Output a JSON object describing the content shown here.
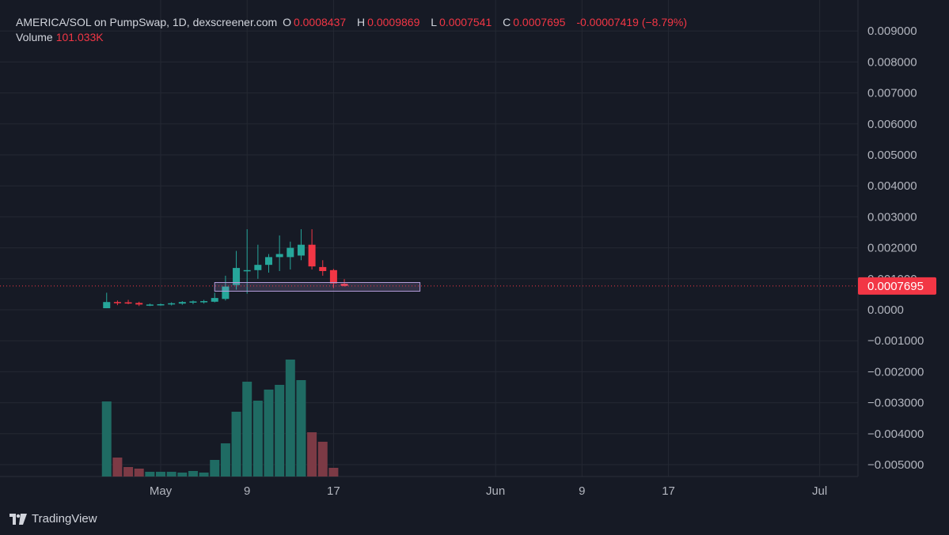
{
  "header": {
    "symbol": "AMERICA/SOL on PumpSwap, 1D, dexscreener.com",
    "o_label": "O",
    "o_value": "0.0008437",
    "h_label": "H",
    "h_value": "0.0009869",
    "l_label": "L",
    "l_value": "0.0007541",
    "c_label": "C",
    "c_value": "0.0007695",
    "change": "-0.00007419 (−8.79%)"
  },
  "volume": {
    "label": "Volume",
    "value": "101.033K"
  },
  "brand": {
    "name": "TradingView"
  },
  "colors": {
    "up": "#26a69a",
    "down": "#f23645",
    "vol_up": "#1f6b63",
    "vol_down": "#7c3a45",
    "background": "#161a25",
    "grid": "#242833",
    "box": "#b39ddb"
  },
  "chart_data": {
    "type": "candlestick",
    "price_axis": {
      "ticks": [
        "0.009000",
        "0.008000",
        "0.007000",
        "0.006000",
        "0.005000",
        "0.004000",
        "0.003000",
        "0.002000",
        "0.001000",
        "0.0000",
        "−0.001000",
        "−0.002000",
        "−0.003000",
        "−0.004000",
        "−0.005000"
      ],
      "tick_values": [
        0.009,
        0.008,
        0.007,
        0.006,
        0.005,
        0.004,
        0.003,
        0.002,
        0.001,
        0,
        -0.001,
        -0.002,
        -0.003,
        -0.004,
        -0.005
      ],
      "last_price_label": "0.0007695",
      "last_price": 0.0007695
    },
    "time_axis": {
      "labels": [
        "May",
        "9",
        "17",
        "Jun",
        "9",
        "17",
        "Jul"
      ],
      "label_days": [
        0,
        8,
        16,
        31,
        39,
        47,
        61
      ]
    },
    "candles": [
      {
        "d": -5,
        "o": 5e-05,
        "h": 0.00055,
        "l": 5e-05,
        "c": 0.00025
      },
      {
        "d": -4,
        "o": 0.00025,
        "h": 0.0003,
        "l": 0.00015,
        "c": 0.00022
      },
      {
        "d": -3,
        "o": 0.00024,
        "h": 0.00032,
        "l": 0.00018,
        "c": 0.00022
      },
      {
        "d": -2,
        "o": 0.00022,
        "h": 0.00026,
        "l": 0.00012,
        "c": 0.00017
      },
      {
        "d": -1,
        "o": 0.00016,
        "h": 0.0002,
        "l": 0.00012,
        "c": 0.00017
      },
      {
        "d": 0,
        "o": 0.00016,
        "h": 0.0002,
        "l": 0.00013,
        "c": 0.00018
      },
      {
        "d": 1,
        "o": 0.00018,
        "h": 0.00024,
        "l": 0.00014,
        "c": 0.00021
      },
      {
        "d": 2,
        "o": 0.0002,
        "h": 0.00028,
        "l": 0.00016,
        "c": 0.00025
      },
      {
        "d": 3,
        "o": 0.00023,
        "h": 0.0003,
        "l": 0.00018,
        "c": 0.00027
      },
      {
        "d": 4,
        "o": 0.00024,
        "h": 0.00032,
        "l": 0.0002,
        "c": 0.00028
      },
      {
        "d": 5,
        "o": 0.00026,
        "h": 0.00055,
        "l": 0.00024,
        "c": 0.00038
      },
      {
        "d": 6,
        "o": 0.00035,
        "h": 0.0011,
        "l": 0.0003,
        "c": 0.00075
      },
      {
        "d": 7,
        "o": 0.0008,
        "h": 0.0019,
        "l": 0.00065,
        "c": 0.00135
      },
      {
        "d": 8,
        "o": 0.00125,
        "h": 0.0026,
        "l": 0.00052,
        "c": 0.00128
      },
      {
        "d": 9,
        "o": 0.00128,
        "h": 0.0021,
        "l": 0.001,
        "c": 0.00145
      },
      {
        "d": 10,
        "o": 0.00145,
        "h": 0.0018,
        "l": 0.0012,
        "c": 0.0017
      },
      {
        "d": 11,
        "o": 0.0017,
        "h": 0.0024,
        "l": 0.00125,
        "c": 0.0018
      },
      {
        "d": 12,
        "o": 0.0017,
        "h": 0.0022,
        "l": 0.0013,
        "c": 0.002
      },
      {
        "d": 13,
        "o": 0.00175,
        "h": 0.0026,
        "l": 0.0016,
        "c": 0.0021
      },
      {
        "d": 14,
        "o": 0.0021,
        "h": 0.0026,
        "l": 0.0013,
        "c": 0.0014
      },
      {
        "d": 15,
        "o": 0.00138,
        "h": 0.0016,
        "l": 0.0011,
        "c": 0.00125
      },
      {
        "d": 16,
        "o": 0.00128,
        "h": 0.00132,
        "l": 0.0007,
        "c": 0.00085
      },
      {
        "d": 17,
        "o": 0.00084,
        "h": 0.00099,
        "l": 0.00075,
        "c": 0.00077
      }
    ],
    "volume_bars": [
      {
        "d": -5,
        "v": 95
      },
      {
        "d": -4,
        "v": 24
      },
      {
        "d": -3,
        "v": 12
      },
      {
        "d": -2,
        "v": 10
      },
      {
        "d": -1,
        "v": 6
      },
      {
        "d": 0,
        "v": 6
      },
      {
        "d": 1,
        "v": 6
      },
      {
        "d": 2,
        "v": 5
      },
      {
        "d": 3,
        "v": 7
      },
      {
        "d": 4,
        "v": 5
      },
      {
        "d": 5,
        "v": 21
      },
      {
        "d": 6,
        "v": 42
      },
      {
        "d": 7,
        "v": 82
      },
      {
        "d": 8,
        "v": 120
      },
      {
        "d": 9,
        "v": 96
      },
      {
        "d": 10,
        "v": 110
      },
      {
        "d": 11,
        "v": 116
      },
      {
        "d": 12,
        "v": 148
      },
      {
        "d": 13,
        "v": 122
      },
      {
        "d": 14,
        "v": 56
      },
      {
        "d": 15,
        "v": 44
      },
      {
        "d": 16,
        "v": 11
      }
    ],
    "volume_max": 160,
    "highlight_box": {
      "d_start": 5,
      "d_end": 24,
      "p_low": 0.0006,
      "p_high": 0.00088
    },
    "grid": true
  }
}
